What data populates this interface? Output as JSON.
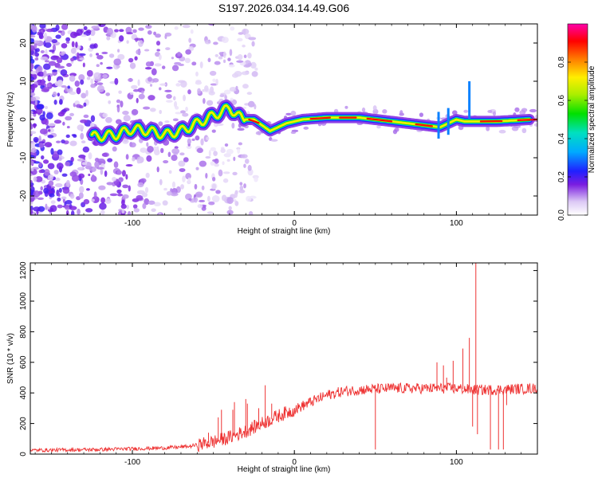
{
  "chart_data": [
    {
      "type": "heatmap",
      "title": "S197.2026.034.14.49.G06",
      "xlabel": "Height of straight line (km)",
      "ylabel": "Frequency (Hz)",
      "xlim": [
        -163,
        150
      ],
      "ylim": [
        -25,
        25
      ],
      "xticks": [
        -100,
        0,
        100
      ],
      "xtick_labels": [
        "-100",
        "0",
        "100"
      ],
      "yticks": [
        -20,
        -10,
        0,
        10,
        20
      ],
      "ytick_labels": [
        "-20",
        "-10",
        "0",
        "10",
        "20"
      ],
      "colorbar": {
        "label": "Normalized spectral amplitude",
        "range": [
          0,
          1
        ],
        "ticks": [
          0.0,
          0.2,
          0.4,
          0.6,
          0.8
        ],
        "tick_labels": [
          "0.0",
          "0.2",
          "0.4",
          "0.6",
          "0.8"
        ],
        "colormap": "rainbow-purple-to-magenta"
      },
      "ridge": {
        "description_series": "dominant frequency vs height",
        "x": [
          -125,
          -110,
          -100,
          -90,
          -80,
          -70,
          -60,
          -50,
          -40,
          -32,
          -25,
          -15,
          -5,
          5,
          20,
          40,
          60,
          80,
          90,
          95,
          100,
          105,
          110,
          125,
          145
        ],
        "y": [
          -4.5,
          -4,
          -2.5,
          -3,
          -4,
          -3,
          -1,
          1,
          3,
          0,
          0,
          -3,
          -1,
          0,
          0.5,
          0.5,
          -0.5,
          -1.5,
          -2,
          -1,
          0,
          -0.5,
          -0.5,
          -0.5,
          0
        ]
      }
    },
    {
      "type": "line",
      "title": "",
      "xlabel": "Height of straight line (km)",
      "ylabel": "SNR (10 * v/v)",
      "xlim": [
        -163,
        150
      ],
      "ylim": [
        0,
        1250
      ],
      "xticks": [
        -100,
        0,
        100
      ],
      "xtick_labels": [
        "-100",
        "0",
        "100"
      ],
      "yticks": [
        0,
        200,
        400,
        600,
        800,
        1000,
        1200
      ],
      "ytick_labels": [
        "0",
        "200",
        "400",
        "600",
        "800",
        "1000",
        "1200"
      ],
      "series": [
        {
          "name": "SNR",
          "color": "#ee3333",
          "envelope_x": [
            -163,
            -120,
            -80,
            -65,
            -60,
            -50,
            -40,
            -30,
            -20,
            -10,
            0,
            10,
            20,
            30,
            40,
            50,
            60,
            70,
            80,
            90,
            100,
            110,
            120,
            135,
            150
          ],
          "envelope_y": [
            25,
            30,
            40,
            50,
            60,
            80,
            110,
            150,
            200,
            250,
            290,
            340,
            385,
            410,
            420,
            425,
            430,
            430,
            430,
            430,
            430,
            420,
            420,
            425,
            430
          ],
          "spikes_x": [
            -53,
            -47,
            -45,
            -38,
            -37,
            -30,
            -29,
            -22,
            -18,
            -14,
            50,
            88,
            92,
            94,
            98,
            104,
            108,
            110,
            112,
            113,
            121,
            126,
            129,
            131
          ],
          "spikes_y": [
            140,
            240,
            290,
            290,
            340,
            360,
            330,
            300,
            450,
            330,
            30,
            600,
            580,
            500,
            610,
            690,
            760,
            180,
            1250,
            130,
            30,
            30,
            30,
            320
          ]
        }
      ]
    }
  ]
}
